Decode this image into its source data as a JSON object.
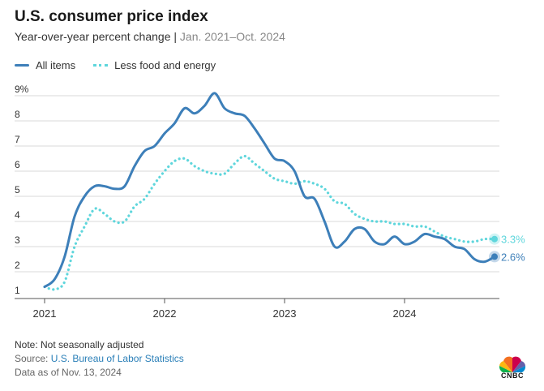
{
  "header": {
    "title": "U.S. consumer price index",
    "subtitle_main": "Year-over-year percent change | ",
    "subtitle_range": "Jan. 2021–Oct. 2024"
  },
  "colors": {
    "all_items": "#3d7fb9",
    "core": "#5fd6dc",
    "grid": "#d9d9d9",
    "axis_text": "#333333"
  },
  "footer": {
    "note": "Note: Not seasonally adjusted",
    "source_prefix": "Source: ",
    "source_name": "U.S. Bureau of Labor Statistics",
    "data_as_of": "Data as of Nov. 13, 2024"
  },
  "logo": {
    "text": "CNBC",
    "icon": "peacock-logo-icon"
  },
  "chart_data": {
    "type": "line",
    "x_start": "2021-01",
    "x_end": "2024-10",
    "x_ticks": [
      "2021",
      "2022",
      "2023",
      "2024"
    ],
    "y_ticks": [
      "9%",
      "8",
      "7",
      "6",
      "5",
      "4",
      "3",
      "2",
      "1"
    ],
    "ylim": [
      1,
      9
    ],
    "grid": true,
    "legend_position": "top-left",
    "series": [
      {
        "name": "All items",
        "style": "solid",
        "end_label": "2.6%",
        "values": [
          1.4,
          1.7,
          2.6,
          4.2,
          5.0,
          5.4,
          5.4,
          5.3,
          5.4,
          6.2,
          6.8,
          7.0,
          7.5,
          7.9,
          8.5,
          8.3,
          8.6,
          9.1,
          8.5,
          8.3,
          8.2,
          7.7,
          7.1,
          6.5,
          6.4,
          6.0,
          5.0,
          4.9,
          4.0,
          3.0,
          3.2,
          3.7,
          3.7,
          3.2,
          3.1,
          3.4,
          3.1,
          3.2,
          3.5,
          3.4,
          3.3,
          3.0,
          2.9,
          2.5,
          2.4,
          2.6
        ]
      },
      {
        "name": "Less food and energy",
        "style": "dotted",
        "end_label": "3.3%",
        "values": [
          1.4,
          1.3,
          1.6,
          3.0,
          3.8,
          4.5,
          4.3,
          4.0,
          4.0,
          4.6,
          4.9,
          5.5,
          6.0,
          6.4,
          6.5,
          6.2,
          6.0,
          5.9,
          5.9,
          6.3,
          6.6,
          6.3,
          6.0,
          5.7,
          5.6,
          5.5,
          5.6,
          5.5,
          5.3,
          4.8,
          4.7,
          4.3,
          4.1,
          4.0,
          4.0,
          3.9,
          3.9,
          3.8,
          3.8,
          3.6,
          3.4,
          3.3,
          3.2,
          3.2,
          3.3,
          3.3
        ]
      }
    ]
  }
}
